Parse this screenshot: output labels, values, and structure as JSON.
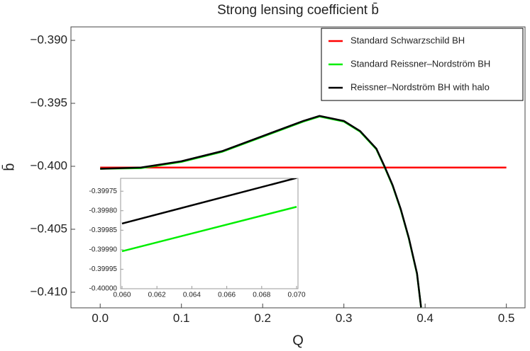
{
  "chart_data": [
    {
      "type": "line",
      "title": "Strong lensing coefficient b̄",
      "xlabel": "Q",
      "ylabel": "b̄",
      "xlim": [
        -0.036,
        0.523
      ],
      "ylim": [
        -0.41124,
        -0.38893
      ],
      "xticks": [
        {
          "value": 0,
          "label": "0.0"
        },
        0.1,
        0.2,
        0.3,
        0.4,
        0.5
      ],
      "yticks": [
        {
          "value": -0.41,
          "label": "−0.410"
        },
        {
          "value": -0.405,
          "label": "−0.405"
        },
        {
          "value": -0.4,
          "label": "−0.400"
        },
        {
          "value": -0.395,
          "label": "−0.395"
        },
        {
          "value": -0.39,
          "label": "−0.390"
        }
      ],
      "legend": "upper right",
      "series": [
        {
          "name": "Standard Schwarzschild BH",
          "color": "#ff0000",
          "x": [
            0,
            0.5
          ],
          "values": [
            -0.4001,
            -0.4001
          ]
        },
        {
          "name": "Standard Reissner–Nordström BH",
          "color": "#00ee00",
          "x": [
            0,
            0.05,
            0.1,
            0.15,
            0.2,
            0.25,
            0.27,
            0.3,
            0.32,
            0.34,
            0.35,
            0.36,
            0.37,
            0.38,
            0.39,
            0.395
          ],
          "values": [
            -0.4002,
            -0.40015,
            -0.39965,
            -0.39885,
            -0.39765,
            -0.39645,
            -0.39605,
            -0.39645,
            -0.39725,
            -0.39865,
            -0.40005,
            -0.40155,
            -0.40345,
            -0.40575,
            -0.40855,
            -0.4112
          ]
        },
        {
          "name": "Reissner–Nordström BH with halo",
          "color": "#000000",
          "x": [
            0,
            0.05,
            0.1,
            0.15,
            0.2,
            0.25,
            0.27,
            0.3,
            0.32,
            0.34,
            0.35,
            0.36,
            0.37,
            0.38,
            0.39,
            0.395
          ],
          "values": [
            -0.4002,
            -0.4001,
            -0.3996,
            -0.3988,
            -0.3976,
            -0.3964,
            -0.396,
            -0.3964,
            -0.3972,
            -0.3986,
            -0.4,
            -0.4015,
            -0.4034,
            -0.4057,
            -0.4085,
            -0.4112
          ]
        }
      ]
    },
    {
      "type": "line",
      "xlim": [
        0.05992,
        0.07008
      ],
      "ylim": [
        -0.4,
        -0.399717
      ],
      "xticks": [
        {
          "value": 0.06,
          "label": "0.060"
        },
        {
          "value": 0.062,
          "label": "0.062"
        },
        {
          "value": 0.064,
          "label": "0.064"
        },
        {
          "value": 0.066,
          "label": "0.066"
        },
        {
          "value": 0.068,
          "label": "0.068"
        },
        {
          "value": 0.07,
          "label": "0.070"
        }
      ],
      "yticks": [
        {
          "value": -0.4,
          "label": "-0.40000"
        },
        {
          "value": -0.39995,
          "label": "-0.39995"
        },
        {
          "value": -0.3999,
          "label": "-0.39990"
        },
        {
          "value": -0.39985,
          "label": "-0.39985"
        },
        {
          "value": -0.3998,
          "label": "-0.39980"
        },
        {
          "value": -0.39975,
          "label": "-0.39975"
        }
      ],
      "series": [
        {
          "color": "#00ee00",
          "x": [
            0.06,
            0.07
          ],
          "values": [
            -0.399904,
            -0.39979
          ]
        },
        {
          "color": "#000000",
          "x": [
            0.06,
            0.07
          ],
          "values": [
            -0.399833,
            -0.399716
          ]
        }
      ]
    }
  ]
}
